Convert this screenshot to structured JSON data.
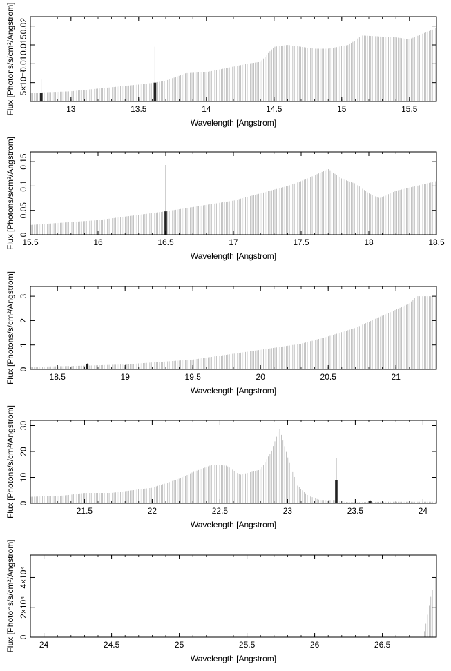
{
  "chart_data": [
    {
      "type": "bar",
      "xlabel": "Wavelength [Angstrom]",
      "ylabel": "Flux [Photons/s/cm²/Angstrom]",
      "xlim": [
        12.7,
        15.7
      ],
      "ylim": [
        0.0,
        0.0225
      ],
      "xticks": [
        13,
        13.5,
        14,
        14.5,
        15,
        15.5
      ],
      "xtick_labels": [
        "13",
        "13.5",
        "14",
        "14.5",
        "15",
        "15.5"
      ],
      "yticks": [
        0.005,
        0.01,
        0.015,
        0.02
      ],
      "ytick_labels": [
        "5×10⁻³",
        "0.01",
        "0.015",
        "0.02"
      ],
      "profile": [
        [
          12.7,
          0.0023
        ],
        [
          13.0,
          0.0027
        ],
        [
          13.5,
          0.0045
        ],
        [
          13.62,
          0.005
        ],
        [
          13.7,
          0.0055
        ],
        [
          13.85,
          0.0075
        ],
        [
          14.0,
          0.0078
        ],
        [
          14.1,
          0.0085
        ],
        [
          14.3,
          0.01
        ],
        [
          14.4,
          0.0105
        ],
        [
          14.5,
          0.0145
        ],
        [
          14.6,
          0.015
        ],
        [
          14.8,
          0.014
        ],
        [
          14.9,
          0.014
        ],
        [
          15.05,
          0.015
        ],
        [
          15.15,
          0.0175
        ],
        [
          15.4,
          0.017
        ],
        [
          15.5,
          0.0165
        ],
        [
          15.7,
          0.0195
        ]
      ],
      "bin_width": 0.012,
      "highlights": [
        {
          "x": 12.78,
          "value": 0.0023,
          "err": 0.0035
        },
        {
          "x": 13.62,
          "value": 0.005,
          "err": 0.0095
        }
      ]
    },
    {
      "type": "bar",
      "xlabel": "Wavelength [Angstrom]",
      "ylabel": "Flux [Photons/s/cm²/Angstrom]",
      "xlim": [
        15.5,
        18.5
      ],
      "ylim": [
        0.0,
        0.17
      ],
      "xticks": [
        15.5,
        16,
        16.5,
        17,
        17.5,
        18,
        18.5
      ],
      "xtick_labels": [
        "15.5",
        "16",
        "16.5",
        "17",
        "17.5",
        "18",
        "18.5"
      ],
      "yticks": [
        0,
        0.05,
        0.1,
        0.15
      ],
      "ytick_labels": [
        "0",
        "0.05",
        "0.1",
        "0.15"
      ],
      "profile": [
        [
          15.5,
          0.02
        ],
        [
          16.0,
          0.03
        ],
        [
          16.5,
          0.048
        ],
        [
          17.0,
          0.07
        ],
        [
          17.4,
          0.1
        ],
        [
          17.5,
          0.11
        ],
        [
          17.6,
          0.122
        ],
        [
          17.7,
          0.135
        ],
        [
          17.8,
          0.115
        ],
        [
          17.9,
          0.105
        ],
        [
          18.0,
          0.085
        ],
        [
          18.08,
          0.075
        ],
        [
          18.2,
          0.09
        ],
        [
          18.5,
          0.11
        ]
      ],
      "bin_width": 0.012,
      "highlights": [
        {
          "x": 16.5,
          "value": 0.048,
          "err": 0.095
        }
      ]
    },
    {
      "type": "bar",
      "xlabel": "Wavelength [Angstrom]",
      "ylabel": "Flux [Photons/s/cm²/Angstrom]",
      "xlim": [
        18.3,
        21.3
      ],
      "ylim": [
        0.0,
        3.4
      ],
      "xticks": [
        18.5,
        19,
        19.5,
        20,
        20.5,
        21
      ],
      "xtick_labels": [
        "18.5",
        "19",
        "19.5",
        "20",
        "20.5",
        "21"
      ],
      "yticks": [
        0,
        1,
        2,
        3
      ],
      "ytick_labels": [
        "0",
        "1",
        "2",
        "3"
      ],
      "profile": [
        [
          18.3,
          0.1
        ],
        [
          18.7,
          0.15
        ],
        [
          19.0,
          0.2
        ],
        [
          19.5,
          0.4
        ],
        [
          20.0,
          0.8
        ],
        [
          20.3,
          1.05
        ],
        [
          20.5,
          1.35
        ],
        [
          20.7,
          1.7
        ],
        [
          20.9,
          2.2
        ],
        [
          21.1,
          2.7
        ],
        [
          21.15,
          3.0
        ],
        [
          21.3,
          3.0
        ]
      ],
      "bin_width": 0.012,
      "highlights": [
        {
          "x": 18.72,
          "value": 0.2,
          "err": 0.05
        }
      ]
    },
    {
      "type": "bar",
      "xlabel": "Wavelength [Angstrom]",
      "ylabel": "Flux [Photons/s/cm²/Angstrom]",
      "xlim": [
        21.1,
        24.1
      ],
      "ylim": [
        0,
        32
      ],
      "xticks": [
        21.5,
        22,
        22.5,
        23,
        23.5,
        24
      ],
      "xtick_labels": [
        "21.5",
        "22",
        "22.5",
        "23",
        "23.5",
        "24"
      ],
      "yticks": [
        0,
        10,
        20,
        30
      ],
      "ytick_labels": [
        "0",
        "10",
        "20",
        "30"
      ],
      "profile": [
        [
          21.1,
          2.5
        ],
        [
          21.35,
          3.0
        ],
        [
          21.5,
          4.0
        ],
        [
          21.7,
          4.0
        ],
        [
          22.0,
          6.0
        ],
        [
          22.2,
          9.5
        ],
        [
          22.3,
          12.0
        ],
        [
          22.45,
          15.0
        ],
        [
          22.55,
          14.5
        ],
        [
          22.65,
          11.0
        ],
        [
          22.8,
          13.0
        ],
        [
          22.88,
          20.0
        ],
        [
          22.94,
          29.0
        ],
        [
          23.0,
          18.0
        ],
        [
          23.07,
          7.0
        ],
        [
          23.15,
          3.0
        ],
        [
          23.25,
          1.0
        ],
        [
          23.35,
          1.0
        ],
        [
          23.45,
          0.4
        ],
        [
          23.7,
          0.6
        ],
        [
          24.1,
          0.6
        ]
      ],
      "bin_width": 0.012,
      "highlights": [
        {
          "x": 23.36,
          "value": 9.0,
          "err": 8.5
        },
        {
          "x": 23.61,
          "value": 0.8,
          "err": 0.3
        }
      ]
    },
    {
      "type": "bar",
      "xlabel": "Wavelength [Angstrom]",
      "ylabel": "Flux [Photons/s/cm²/Angstrom]",
      "xlim": [
        23.9,
        26.9
      ],
      "ylim": [
        0,
        55000
      ],
      "xticks": [
        24,
        24.5,
        25,
        25.5,
        26,
        26.5
      ],
      "xtick_labels": [
        "24",
        "24.5",
        "25",
        "25.5",
        "26",
        "26.5"
      ],
      "yticks": [
        0,
        20000,
        40000
      ],
      "ytick_labels": [
        "0",
        "2×10⁴",
        "4×10⁴"
      ],
      "profile": [
        [
          23.9,
          0
        ],
        [
          26.8,
          0
        ],
        [
          26.82,
          8000
        ],
        [
          26.86,
          28000
        ],
        [
          26.9,
          42000
        ]
      ],
      "bin_width": 0.012,
      "highlights": []
    }
  ]
}
